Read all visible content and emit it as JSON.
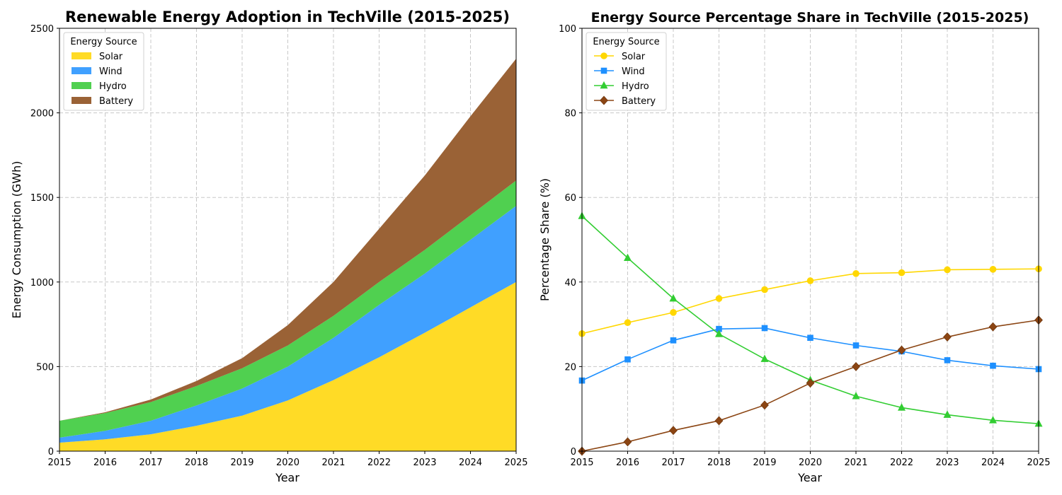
{
  "chart_data": [
    {
      "type": "area",
      "title": "Renewable Energy Adoption in TechVille (2015-2025)",
      "xlabel": "Year",
      "ylabel": "Energy Consumption (GWh)",
      "xlim": [
        2015,
        2025
      ],
      "ylim": [
        0,
        2500
      ],
      "x": [
        2015,
        2016,
        2017,
        2018,
        2019,
        2020,
        2021,
        2022,
        2023,
        2024,
        2025
      ],
      "xticks": [
        2015,
        2016,
        2017,
        2018,
        2019,
        2020,
        2021,
        2022,
        2023,
        2024,
        2025
      ],
      "yticks": [
        0,
        500,
        1000,
        1500,
        2000,
        2500
      ],
      "stacked": true,
      "grid": true,
      "legend": {
        "title": "Energy Source",
        "placement": "top-left"
      },
      "series": [
        {
          "name": "Solar",
          "color": "#FFDB26",
          "values": [
            50,
            70,
            100,
            150,
            210,
            300,
            420,
            555,
            700,
            850,
            1000
          ]
        },
        {
          "name": "Wind",
          "color": "#40A0FF",
          "values": [
            30,
            50,
            80,
            120,
            160,
            200,
            250,
            310,
            350,
            400,
            450
          ]
        },
        {
          "name": "Hydro",
          "color": "#50D050",
          "values": [
            100,
            105,
            110,
            115,
            120,
            125,
            130,
            135,
            140,
            145,
            150
          ]
        },
        {
          "name": "Battery",
          "color": "#9A6236",
          "values": [
            0,
            5,
            15,
            30,
            60,
            120,
            200,
            315,
            440,
            585,
            720
          ]
        }
      ]
    },
    {
      "type": "line",
      "title": "Energy Source Percentage Share in TechVille (2015-2025)",
      "xlabel": "Year",
      "ylabel": "Percentage Share (%)",
      "xlim": [
        2015,
        2025
      ],
      "ylim": [
        0,
        100
      ],
      "x": [
        2015,
        2016,
        2017,
        2018,
        2019,
        2020,
        2021,
        2022,
        2023,
        2024,
        2025
      ],
      "xticks": [
        2015,
        2016,
        2017,
        2018,
        2019,
        2020,
        2021,
        2022,
        2023,
        2024,
        2025
      ],
      "yticks": [
        0,
        20,
        40,
        60,
        80,
        100
      ],
      "grid": true,
      "legend": {
        "title": "Energy Source",
        "placement": "top-left"
      },
      "series": [
        {
          "name": "Solar",
          "color": "#FFD700",
          "marker": "circle",
          "values": [
            27.8,
            30.4,
            32.8,
            36.1,
            38.2,
            40.3,
            42.0,
            42.2,
            42.9,
            43.0,
            43.1
          ]
        },
        {
          "name": "Wind",
          "color": "#1E90FF",
          "marker": "square",
          "values": [
            16.7,
            21.7,
            26.2,
            28.9,
            29.1,
            26.8,
            25.0,
            23.6,
            21.5,
            20.2,
            19.4
          ]
        },
        {
          "name": "Hydro",
          "color": "#32CD32",
          "marker": "triangle",
          "values": [
            55.6,
            45.7,
            36.1,
            27.7,
            21.8,
            16.8,
            13.0,
            10.3,
            8.6,
            7.3,
            6.5
          ]
        },
        {
          "name": "Battery",
          "color": "#8B4513",
          "marker": "diamond",
          "values": [
            0.0,
            2.2,
            4.9,
            7.2,
            10.9,
            16.1,
            20.0,
            23.9,
            27.0,
            29.4,
            31.0
          ]
        }
      ]
    }
  ]
}
